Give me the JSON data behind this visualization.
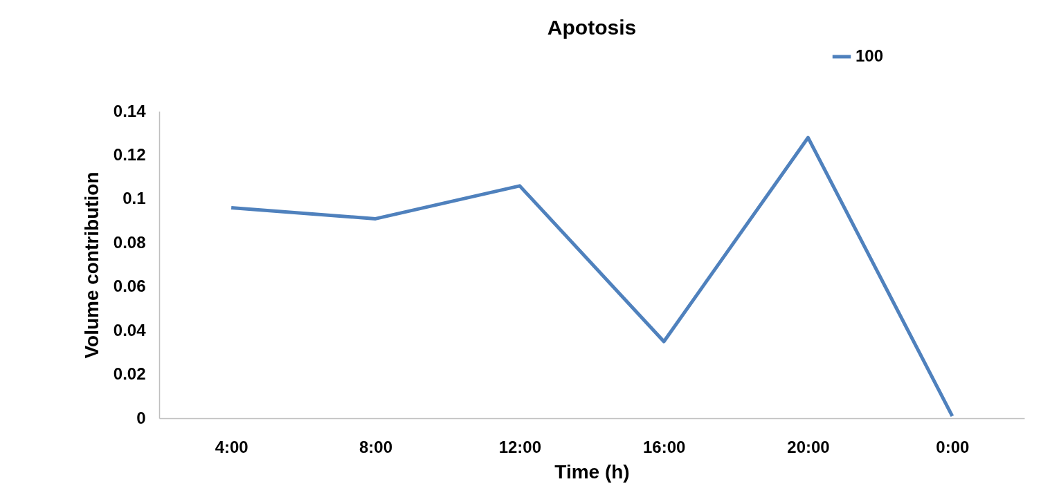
{
  "chart_data": {
    "type": "line",
    "title": "Apotosis",
    "xlabel": "Time (h)",
    "ylabel": "Volume contribution",
    "categories": [
      "4:00",
      "8:00",
      "12:00",
      "16:00",
      "20:00",
      "0:00"
    ],
    "series": [
      {
        "name": "100",
        "color": "#4f81bd",
        "values": [
          0.096,
          0.091,
          0.106,
          0.035,
          0.128,
          0.001
        ]
      }
    ],
    "ylim": [
      0,
      0.14
    ],
    "yticks": [
      0,
      0.02,
      0.04,
      0.06,
      0.08,
      0.1,
      0.12,
      0.14
    ],
    "grid": false,
    "legend": "top right",
    "marker": "none",
    "line_style": "solid"
  }
}
